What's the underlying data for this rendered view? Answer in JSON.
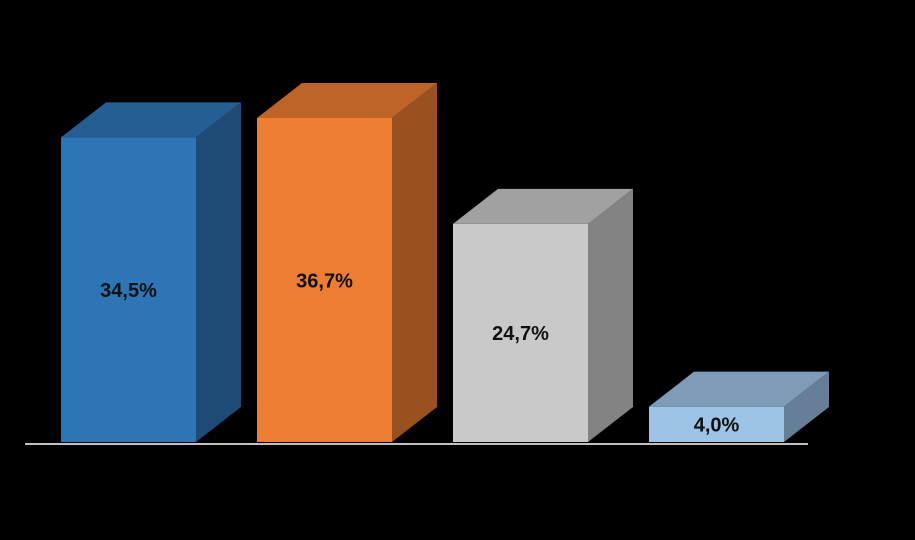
{
  "chart_data": {
    "type": "bar3d",
    "categories": [
      null,
      null,
      null,
      null
    ],
    "values": [
      34.5,
      36.7,
      24.7,
      4.0
    ],
    "value_labels": [
      "34,5%",
      "36,7%",
      "24,7%",
      "4,0%"
    ],
    "colors": [
      "#2e75b6",
      "#ed7d31",
      "#c9c9c9",
      "#9dc3e6"
    ]
  }
}
